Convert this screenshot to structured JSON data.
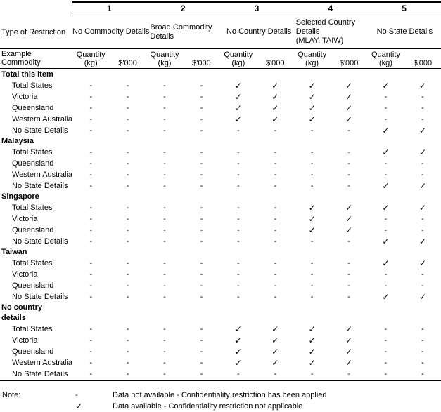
{
  "header": {
    "type_of_restriction_label": "Type of Restriction",
    "example_commodity_label": "Example Commodity",
    "groups": [
      {
        "number": "1",
        "restriction": "No Commodity Details"
      },
      {
        "number": "2",
        "restriction": "Broad Commodity\nDetails"
      },
      {
        "number": "3",
        "restriction": "No Country Details"
      },
      {
        "number": "4",
        "restriction": "Selected Country\nDetails\n(MLAY, TAIW)"
      },
      {
        "number": "5",
        "restriction": "No State Details"
      }
    ],
    "quantity_label": "Quantity\n(kg)",
    "value_label": "$'000"
  },
  "symbols": {
    "dash": "-",
    "check": "✓"
  },
  "sections": [
    {
      "title": "Total this item",
      "rows": [
        {
          "label": "Total States",
          "cells": [
            "-",
            "-",
            "-",
            "-",
            "✓",
            "✓",
            "✓",
            "✓",
            "✓",
            "✓"
          ]
        },
        {
          "label": "Victoria",
          "cells": [
            "-",
            "-",
            "-",
            "-",
            "✓",
            "✓",
            "✓",
            "✓",
            "-",
            "-"
          ]
        },
        {
          "label": "Queensland",
          "cells": [
            "-",
            "-",
            "-",
            "-",
            "✓",
            "✓",
            "✓",
            "✓",
            "-",
            "-"
          ]
        },
        {
          "label": "Western Australia",
          "cells": [
            "-",
            "-",
            "-",
            "-",
            "✓",
            "✓",
            "✓",
            "✓",
            "-",
            "-"
          ]
        },
        {
          "label": "No State Details",
          "cells": [
            "-",
            "-",
            "-",
            "-",
            "-",
            "-",
            "-",
            "-",
            "✓",
            "✓"
          ]
        }
      ]
    },
    {
      "title": "Malaysia",
      "rows": [
        {
          "label": "Total States",
          "cells": [
            "-",
            "-",
            "-",
            "-",
            "-",
            "-",
            "-",
            "-",
            "✓",
            "✓"
          ]
        },
        {
          "label": "Queensland",
          "cells": [
            "-",
            "-",
            "-",
            "-",
            "-",
            "-",
            "-",
            "-",
            "-",
            "-"
          ]
        },
        {
          "label": "Western Australia",
          "cells": [
            "-",
            "-",
            "-",
            "-",
            "-",
            "-",
            "-",
            "-",
            "-",
            "-"
          ]
        },
        {
          "label": "No State Details",
          "cells": [
            "-",
            "-",
            "-",
            "-",
            "-",
            "-",
            "-",
            "-",
            "✓",
            "✓"
          ]
        }
      ]
    },
    {
      "title": "Singapore",
      "rows": [
        {
          "label": "Total States",
          "cells": [
            "-",
            "-",
            "-",
            "-",
            "-",
            "-",
            "✓",
            "✓",
            "✓",
            "✓"
          ]
        },
        {
          "label": "Victoria",
          "cells": [
            "-",
            "-",
            "-",
            "-",
            "-",
            "-",
            "✓",
            "✓",
            "-",
            "-"
          ]
        },
        {
          "label": "Queensland",
          "cells": [
            "-",
            "-",
            "-",
            "-",
            "-",
            "-",
            "✓",
            "✓",
            "-",
            "-"
          ]
        },
        {
          "label": "No State Details",
          "cells": [
            "-",
            "-",
            "-",
            "-",
            "-",
            "-",
            "-",
            "-",
            "✓",
            "✓"
          ]
        }
      ]
    },
    {
      "title": "Taiwan",
      "rows": [
        {
          "label": "Total States",
          "cells": [
            "-",
            "-",
            "-",
            "-",
            "-",
            "-",
            "-",
            "-",
            "✓",
            "✓"
          ]
        },
        {
          "label": "Victoria",
          "cells": [
            "-",
            "-",
            "-",
            "-",
            "-",
            "-",
            "-",
            "-",
            "-",
            "-"
          ]
        },
        {
          "label": "Queensland",
          "cells": [
            "-",
            "-",
            "-",
            "-",
            "-",
            "-",
            "-",
            "-",
            "-",
            "-"
          ]
        },
        {
          "label": "No State Details",
          "cells": [
            "-",
            "-",
            "-",
            "-",
            "-",
            "-",
            "-",
            "-",
            "✓",
            "✓"
          ]
        }
      ]
    },
    {
      "title": "No country\ndetails",
      "rows": [
        {
          "label": "Total States",
          "cells": [
            "-",
            "-",
            "-",
            "-",
            "✓",
            "✓",
            "✓",
            "✓",
            "-",
            "-"
          ]
        },
        {
          "label": "Victoria",
          "cells": [
            "-",
            "-",
            "-",
            "-",
            "✓",
            "✓",
            "✓",
            "✓",
            "-",
            "-"
          ]
        },
        {
          "label": "Queensland",
          "cells": [
            "-",
            "-",
            "-",
            "-",
            "✓",
            "✓",
            "✓",
            "✓",
            "-",
            "-"
          ]
        },
        {
          "label": "Western Australia",
          "cells": [
            "-",
            "-",
            "-",
            "-",
            "✓",
            "✓",
            "✓",
            "✓",
            "-",
            "-"
          ]
        },
        {
          "label": "No State Details",
          "cells": [
            "-",
            "-",
            "-",
            "-",
            "-",
            "-",
            "-",
            "-",
            "-",
            "-"
          ]
        }
      ]
    }
  ],
  "note": {
    "label": "Note:",
    "lines": [
      {
        "symbol": "-",
        "text": "Data not available - Confidentiality restriction has been applied"
      },
      {
        "symbol": "✓",
        "text": "Data available - Confidentiality restriction not applicable"
      }
    ]
  }
}
